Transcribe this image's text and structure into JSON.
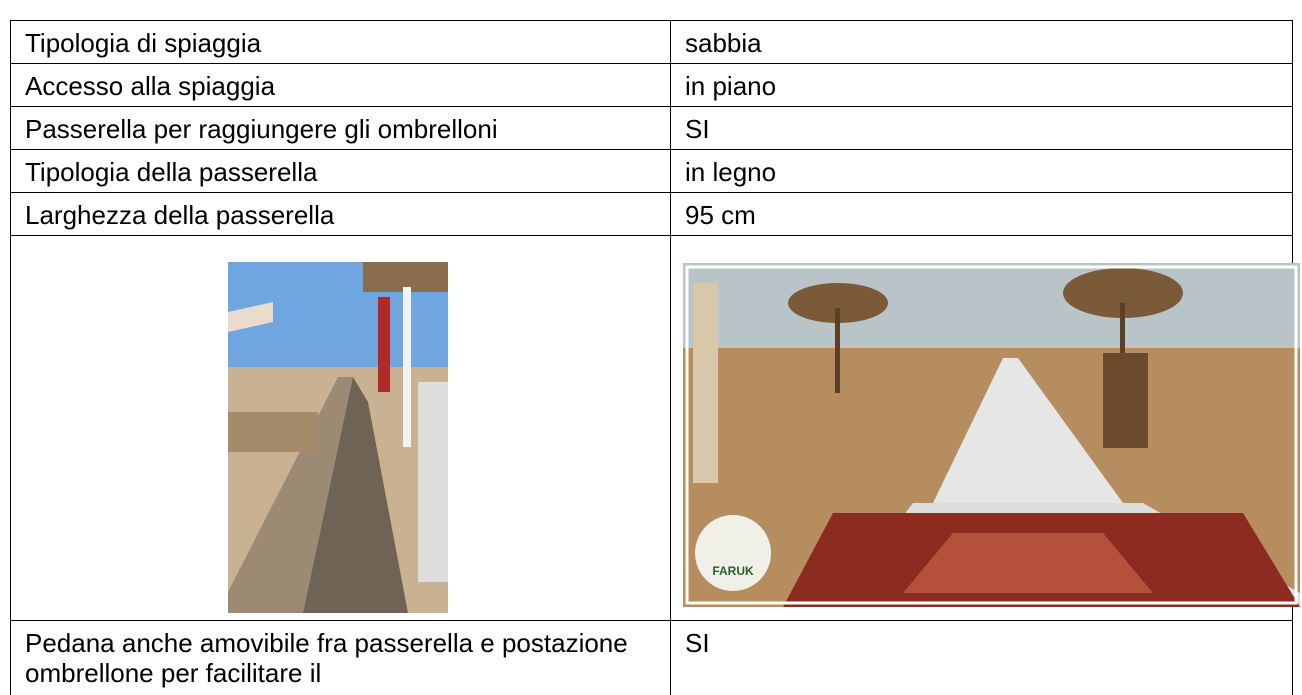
{
  "table": {
    "rows": [
      [
        "Tipologia di spiaggia",
        "sabbia"
      ],
      [
        "Accesso alla spiaggia",
        "in piano"
      ],
      [
        "Passerella per raggiungere gli ombrelloni",
        "SI"
      ],
      [
        "Tipologia della passerella",
        "in legno"
      ],
      [
        "Larghezza della passerella",
        "95 cm"
      ]
    ],
    "photo_logo": "FARUK",
    "last_row": [
      "Pedana anche amovibile fra passerella e postazione ombrellone per facilitare il",
      "SI"
    ]
  }
}
